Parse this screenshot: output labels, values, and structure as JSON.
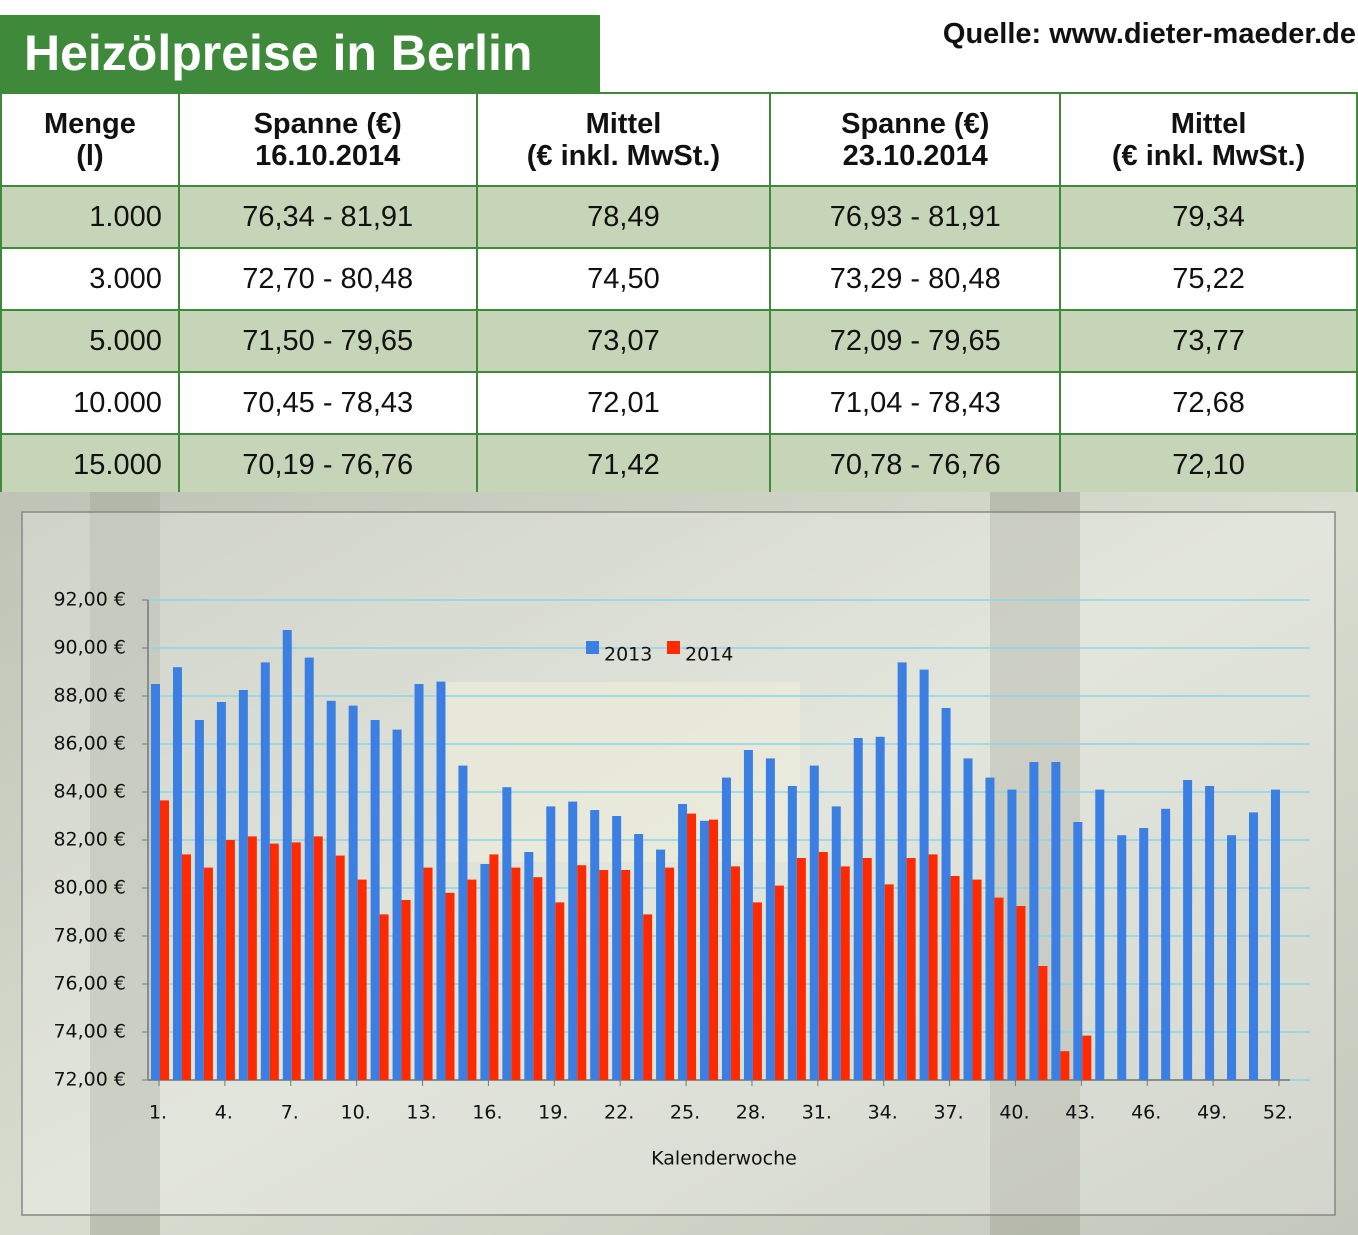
{
  "header": {
    "title": "Heizölpreise in Berlin",
    "source": "Quelle: www.dieter-maeder.de"
  },
  "table": {
    "columns": [
      [
        "Menge",
        "(l)"
      ],
      [
        "Spanne (€)",
        "16.10.2014"
      ],
      [
        "Mittel",
        "(€ inkl. MwSt.)"
      ],
      [
        "Spanne (€)",
        "23.10.2014"
      ],
      [
        "Mittel",
        "(€ inkl. MwSt.)"
      ]
    ],
    "rows": [
      [
        "1.000",
        "76,34 - 81,91",
        "78,49",
        "76,93 - 81,91",
        "79,34"
      ],
      [
        "3.000",
        "72,70 - 80,48",
        "74,50",
        "73,29 - 80,48",
        "75,22"
      ],
      [
        "5.000",
        "71,50 - 79,65",
        "73,07",
        "72,09 - 79,65",
        "73,77"
      ],
      [
        "10.000",
        "70,45 - 78,43",
        "72,01",
        "71,04 - 78,43",
        "72,68"
      ],
      [
        "15.000",
        "70,19 - 76,76",
        "71,42",
        "70,78 - 76,76",
        "72,10"
      ]
    ]
  },
  "chart_data": {
    "type": "bar",
    "xlabel": "Kalenderwoche",
    "categories": [
      "1.",
      null,
      null,
      "4.",
      null,
      null,
      "7.",
      null,
      null,
      "10.",
      null,
      null,
      "13.",
      null,
      null,
      "16.",
      null,
      null,
      "19.",
      null,
      null,
      "22.",
      null,
      null,
      "25.",
      null,
      null,
      "28.",
      null,
      null,
      "31.",
      null,
      null,
      "34.",
      null,
      null,
      "37.",
      null,
      null,
      "40.",
      null,
      null,
      "43.",
      null,
      null,
      "46.",
      null,
      null,
      "49.",
      null,
      null,
      "52."
    ],
    "series": [
      {
        "name": "2013",
        "color": "#3b7fe3",
        "values": [
          88.5,
          89.2,
          87.0,
          87.75,
          88.25,
          89.4,
          90.75,
          89.6,
          87.8,
          87.6,
          87.0,
          86.6,
          88.5,
          88.6,
          85.1,
          81.0,
          84.2,
          81.5,
          83.4,
          83.6,
          83.25,
          83.0,
          82.25,
          81.6,
          83.5,
          82.8,
          84.6,
          85.75,
          85.4,
          84.25,
          85.1,
          83.4,
          86.25,
          86.3,
          89.4,
          89.1,
          87.5,
          85.4,
          84.6,
          84.1,
          85.25,
          85.25,
          82.75,
          84.1,
          82.2,
          82.5,
          83.3,
          84.5,
          84.25,
          82.2,
          83.15,
          84.1
        ]
      },
      {
        "name": "2014",
        "color": "#ff2a00",
        "values": [
          83.65,
          81.4,
          80.85,
          82.0,
          82.15,
          81.85,
          81.9,
          82.15,
          81.35,
          80.35,
          78.9,
          79.5,
          80.85,
          79.8,
          80.35,
          81.4,
          80.85,
          80.45,
          79.4,
          80.95,
          80.75,
          80.75,
          78.9,
          80.85,
          83.1,
          82.85,
          80.9,
          79.4,
          80.1,
          81.25,
          81.5,
          80.9,
          81.25,
          80.15,
          81.25,
          81.4,
          80.5,
          80.35,
          79.6,
          79.25,
          76.75,
          73.2,
          73.85,
          null,
          null,
          null,
          null,
          null,
          null,
          null,
          null,
          null
        ]
      }
    ],
    "ylim": [
      72,
      92
    ],
    "yticks": [
      {
        "value": 72,
        "label": "72,00 €"
      },
      {
        "value": 74,
        "label": "74,00 €"
      },
      {
        "value": 76,
        "label": "76,00 €"
      },
      {
        "value": 78,
        "label": "78,00 €"
      },
      {
        "value": 80,
        "label": "80,00 €"
      },
      {
        "value": 82,
        "label": "82,00 €"
      },
      {
        "value": 84,
        "label": "84,00 €"
      },
      {
        "value": 86,
        "label": "86,00 €"
      },
      {
        "value": 88,
        "label": "88,00 €"
      },
      {
        "value": 90,
        "label": "90,00 €"
      },
      {
        "value": 92,
        "label": "92,00 €"
      }
    ],
    "grid": true,
    "legend": "top"
  }
}
